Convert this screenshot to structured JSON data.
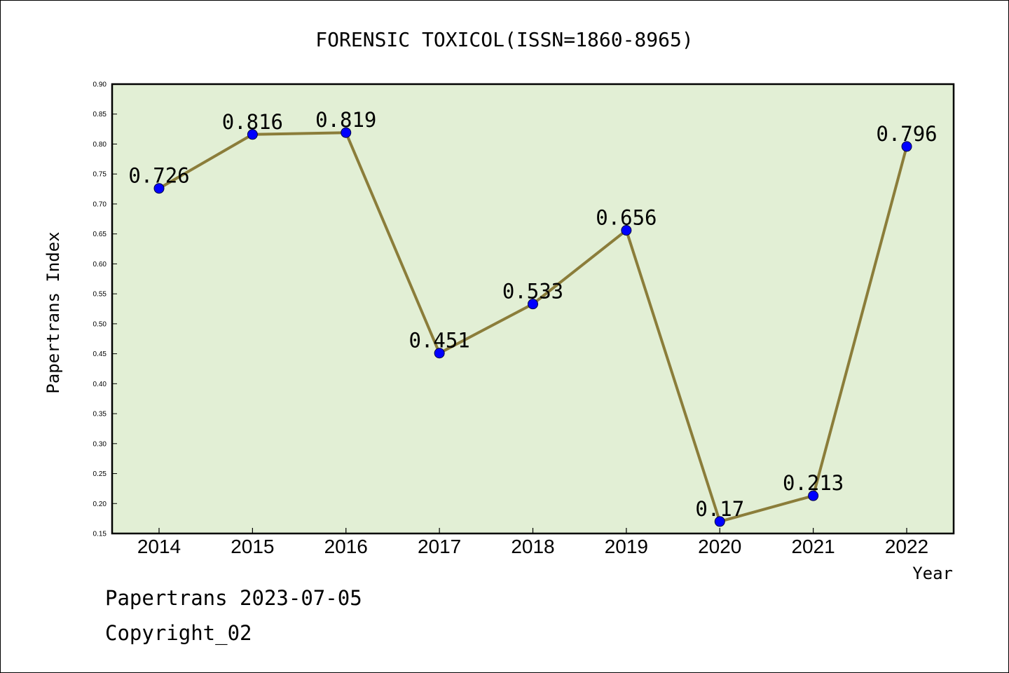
{
  "chart_data": {
    "type": "line",
    "title": "FORENSIC TOXICOL(ISSN=1860-8965)",
    "xlabel": "Year",
    "ylabel": "Papertrans Index",
    "categories": [
      "2014",
      "2015",
      "2016",
      "2017",
      "2018",
      "2019",
      "2020",
      "2021",
      "2022"
    ],
    "series": [
      {
        "values": [
          0.726,
          0.816,
          0.819,
          0.451,
          0.533,
          0.656,
          0.17,
          0.213,
          0.796
        ],
        "labels": [
          "0.726",
          "0.816",
          "0.819",
          "0.451",
          "0.533",
          "0.656",
          "0.17",
          "0.213",
          "0.796"
        ]
      }
    ],
    "ylim": [
      0.15,
      0.9
    ],
    "yticks": [
      "0.15",
      "0.20",
      "0.25",
      "0.30",
      "0.35",
      "0.40",
      "0.45",
      "0.50",
      "0.55",
      "0.60",
      "0.65",
      "0.70",
      "0.75",
      "0.80",
      "0.85",
      "0.90"
    ],
    "grid": false,
    "colors": {
      "plot_background": "#e2efd5",
      "line": "#8b7d3a",
      "marker": "#0000ff"
    }
  },
  "footer": {
    "line1": "Papertrans 2023-07-05",
    "line2": "Copyright_02"
  }
}
